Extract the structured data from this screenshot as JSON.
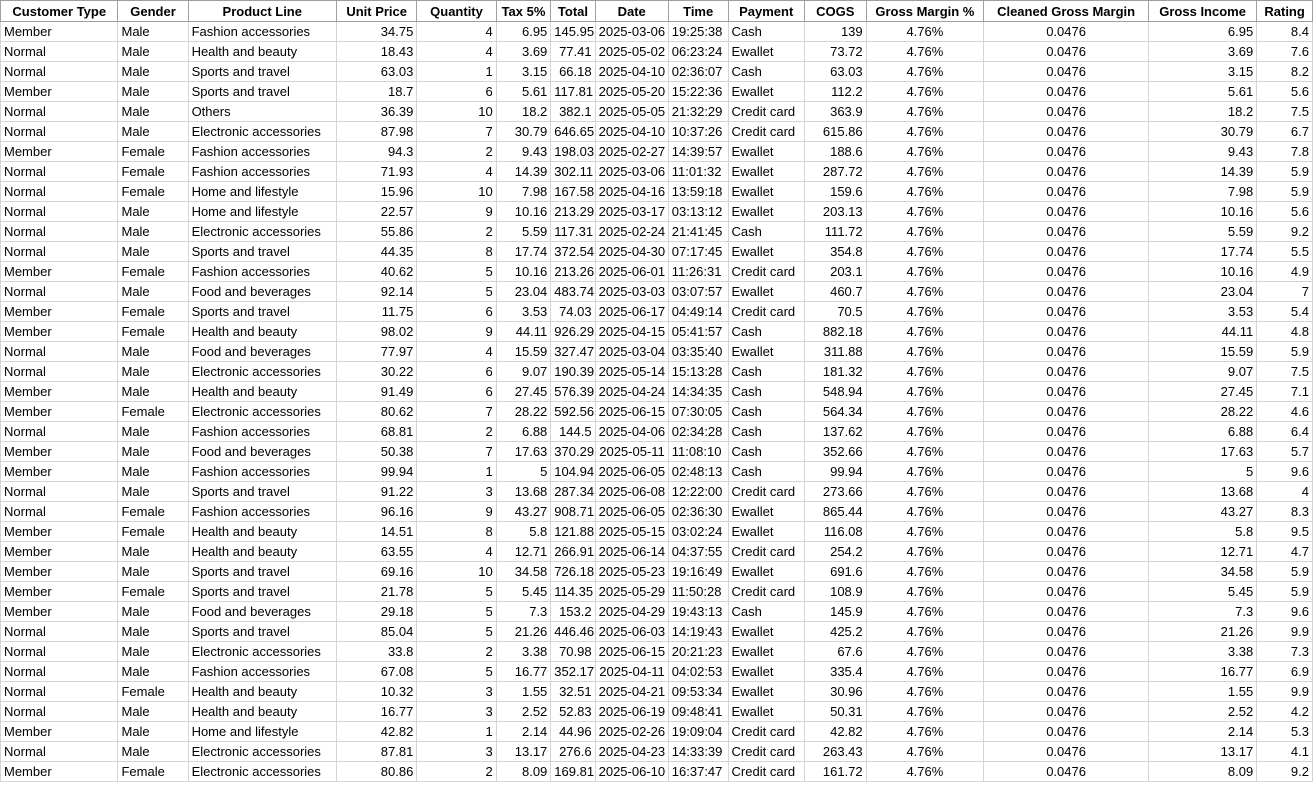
{
  "columns": [
    "Customer Type",
    "Gender",
    "Product Line",
    "Unit Price",
    "Quantity",
    "Tax 5%",
    "Total",
    "Date",
    "Time",
    "Payment",
    "COGS",
    "Gross Margin %",
    "Cleaned Gross Margin",
    "Gross Income",
    "Rating"
  ],
  "rows": [
    [
      "Member",
      "Male",
      "Fashion accessories",
      "34.75",
      "4",
      "6.95",
      "145.95",
      "2025-03-06",
      "19:25:38",
      "Cash",
      "139",
      "4.76%",
      "0.0476",
      "6.95",
      "8.4"
    ],
    [
      "Normal",
      "Male",
      "Health and beauty",
      "18.43",
      "4",
      "3.69",
      "77.41",
      "2025-05-02",
      "06:23:24",
      "Ewallet",
      "73.72",
      "4.76%",
      "0.0476",
      "3.69",
      "7.6"
    ],
    [
      "Normal",
      "Male",
      "Sports and travel",
      "63.03",
      "1",
      "3.15",
      "66.18",
      "2025-04-10",
      "02:36:07",
      "Cash",
      "63.03",
      "4.76%",
      "0.0476",
      "3.15",
      "8.2"
    ],
    [
      "Member",
      "Male",
      "Sports and travel",
      "18.7",
      "6",
      "5.61",
      "117.81",
      "2025-05-20",
      "15:22:36",
      "Ewallet",
      "112.2",
      "4.76%",
      "0.0476",
      "5.61",
      "5.6"
    ],
    [
      "Normal",
      "Male",
      "Others",
      "36.39",
      "10",
      "18.2",
      "382.1",
      "2025-05-05",
      "21:32:29",
      "Credit card",
      "363.9",
      "4.76%",
      "0.0476",
      "18.2",
      "7.5"
    ],
    [
      "Normal",
      "Male",
      "Electronic accessories",
      "87.98",
      "7",
      "30.79",
      "646.65",
      "2025-04-10",
      "10:37:26",
      "Credit card",
      "615.86",
      "4.76%",
      "0.0476",
      "30.79",
      "6.7"
    ],
    [
      "Member",
      "Female",
      "Fashion accessories",
      "94.3",
      "2",
      "9.43",
      "198.03",
      "2025-02-27",
      "14:39:57",
      "Ewallet",
      "188.6",
      "4.76%",
      "0.0476",
      "9.43",
      "7.8"
    ],
    [
      "Normal",
      "Female",
      "Fashion accessories",
      "71.93",
      "4",
      "14.39",
      "302.11",
      "2025-03-06",
      "11:01:32",
      "Ewallet",
      "287.72",
      "4.76%",
      "0.0476",
      "14.39",
      "5.9"
    ],
    [
      "Normal",
      "Female",
      "Home and lifestyle",
      "15.96",
      "10",
      "7.98",
      "167.58",
      "2025-04-16",
      "13:59:18",
      "Ewallet",
      "159.6",
      "4.76%",
      "0.0476",
      "7.98",
      "5.9"
    ],
    [
      "Normal",
      "Male",
      "Home and lifestyle",
      "22.57",
      "9",
      "10.16",
      "213.29",
      "2025-03-17",
      "03:13:12",
      "Ewallet",
      "203.13",
      "4.76%",
      "0.0476",
      "10.16",
      "5.6"
    ],
    [
      "Normal",
      "Male",
      "Electronic accessories",
      "55.86",
      "2",
      "5.59",
      "117.31",
      "2025-02-24",
      "21:41:45",
      "Cash",
      "111.72",
      "4.76%",
      "0.0476",
      "5.59",
      "9.2"
    ],
    [
      "Normal",
      "Male",
      "Sports and travel",
      "44.35",
      "8",
      "17.74",
      "372.54",
      "2025-04-30",
      "07:17:45",
      "Ewallet",
      "354.8",
      "4.76%",
      "0.0476",
      "17.74",
      "5.5"
    ],
    [
      "Member",
      "Female",
      "Fashion accessories",
      "40.62",
      "5",
      "10.16",
      "213.26",
      "2025-06-01",
      "11:26:31",
      "Credit card",
      "203.1",
      "4.76%",
      "0.0476",
      "10.16",
      "4.9"
    ],
    [
      "Normal",
      "Male",
      "Food and beverages",
      "92.14",
      "5",
      "23.04",
      "483.74",
      "2025-03-03",
      "03:07:57",
      "Ewallet",
      "460.7",
      "4.76%",
      "0.0476",
      "23.04",
      "7"
    ],
    [
      "Member",
      "Female",
      "Sports and travel",
      "11.75",
      "6",
      "3.53",
      "74.03",
      "2025-06-17",
      "04:49:14",
      "Credit card",
      "70.5",
      "4.76%",
      "0.0476",
      "3.53",
      "5.4"
    ],
    [
      "Member",
      "Female",
      "Health and beauty",
      "98.02",
      "9",
      "44.11",
      "926.29",
      "2025-04-15",
      "05:41:57",
      "Cash",
      "882.18",
      "4.76%",
      "0.0476",
      "44.11",
      "4.8"
    ],
    [
      "Normal",
      "Male",
      "Food and beverages",
      "77.97",
      "4",
      "15.59",
      "327.47",
      "2025-03-04",
      "03:35:40",
      "Ewallet",
      "311.88",
      "4.76%",
      "0.0476",
      "15.59",
      "5.9"
    ],
    [
      "Normal",
      "Male",
      "Electronic accessories",
      "30.22",
      "6",
      "9.07",
      "190.39",
      "2025-05-14",
      "15:13:28",
      "Cash",
      "181.32",
      "4.76%",
      "0.0476",
      "9.07",
      "7.5"
    ],
    [
      "Member",
      "Male",
      "Health and beauty",
      "91.49",
      "6",
      "27.45",
      "576.39",
      "2025-04-24",
      "14:34:35",
      "Cash",
      "548.94",
      "4.76%",
      "0.0476",
      "27.45",
      "7.1"
    ],
    [
      "Member",
      "Female",
      "Electronic accessories",
      "80.62",
      "7",
      "28.22",
      "592.56",
      "2025-06-15",
      "07:30:05",
      "Cash",
      "564.34",
      "4.76%",
      "0.0476",
      "28.22",
      "4.6"
    ],
    [
      "Normal",
      "Male",
      "Fashion accessories",
      "68.81",
      "2",
      "6.88",
      "144.5",
      "2025-04-06",
      "02:34:28",
      "Cash",
      "137.62",
      "4.76%",
      "0.0476",
      "6.88",
      "6.4"
    ],
    [
      "Member",
      "Male",
      "Food and beverages",
      "50.38",
      "7",
      "17.63",
      "370.29",
      "2025-05-11",
      "11:08:10",
      "Cash",
      "352.66",
      "4.76%",
      "0.0476",
      "17.63",
      "5.7"
    ],
    [
      "Member",
      "Male",
      "Fashion accessories",
      "99.94",
      "1",
      "5",
      "104.94",
      "2025-06-05",
      "02:48:13",
      "Cash",
      "99.94",
      "4.76%",
      "0.0476",
      "5",
      "9.6"
    ],
    [
      "Normal",
      "Male",
      "Sports and travel",
      "91.22",
      "3",
      "13.68",
      "287.34",
      "2025-06-08",
      "12:22:00",
      "Credit card",
      "273.66",
      "4.76%",
      "0.0476",
      "13.68",
      "4"
    ],
    [
      "Normal",
      "Female",
      "Fashion accessories",
      "96.16",
      "9",
      "43.27",
      "908.71",
      "2025-06-05",
      "02:36:30",
      "Ewallet",
      "865.44",
      "4.76%",
      "0.0476",
      "43.27",
      "8.3"
    ],
    [
      "Member",
      "Female",
      "Health and beauty",
      "14.51",
      "8",
      "5.8",
      "121.88",
      "2025-05-15",
      "03:02:24",
      "Ewallet",
      "116.08",
      "4.76%",
      "0.0476",
      "5.8",
      "9.5"
    ],
    [
      "Member",
      "Male",
      "Health and beauty",
      "63.55",
      "4",
      "12.71",
      "266.91",
      "2025-06-14",
      "04:37:55",
      "Credit card",
      "254.2",
      "4.76%",
      "0.0476",
      "12.71",
      "4.7"
    ],
    [
      "Member",
      "Male",
      "Sports and travel",
      "69.16",
      "10",
      "34.58",
      "726.18",
      "2025-05-23",
      "19:16:49",
      "Ewallet",
      "691.6",
      "4.76%",
      "0.0476",
      "34.58",
      "5.9"
    ],
    [
      "Member",
      "Female",
      "Sports and travel",
      "21.78",
      "5",
      "5.45",
      "114.35",
      "2025-05-29",
      "11:50:28",
      "Credit card",
      "108.9",
      "4.76%",
      "0.0476",
      "5.45",
      "5.9"
    ],
    [
      "Member",
      "Male",
      "Food and beverages",
      "29.18",
      "5",
      "7.3",
      "153.2",
      "2025-04-29",
      "19:43:13",
      "Cash",
      "145.9",
      "4.76%",
      "0.0476",
      "7.3",
      "9.6"
    ],
    [
      "Normal",
      "Male",
      "Sports and travel",
      "85.04",
      "5",
      "21.26",
      "446.46",
      "2025-06-03",
      "14:19:43",
      "Ewallet",
      "425.2",
      "4.76%",
      "0.0476",
      "21.26",
      "9.9"
    ],
    [
      "Normal",
      "Male",
      "Electronic accessories",
      "33.8",
      "2",
      "3.38",
      "70.98",
      "2025-06-15",
      "20:21:23",
      "Ewallet",
      "67.6",
      "4.76%",
      "0.0476",
      "3.38",
      "7.3"
    ],
    [
      "Normal",
      "Male",
      "Fashion accessories",
      "67.08",
      "5",
      "16.77",
      "352.17",
      "2025-04-11",
      "04:02:53",
      "Ewallet",
      "335.4",
      "4.76%",
      "0.0476",
      "16.77",
      "6.9"
    ],
    [
      "Normal",
      "Female",
      "Health and beauty",
      "10.32",
      "3",
      "1.55",
      "32.51",
      "2025-04-21",
      "09:53:34",
      "Ewallet",
      "30.96",
      "4.76%",
      "0.0476",
      "1.55",
      "9.9"
    ],
    [
      "Normal",
      "Male",
      "Health and beauty",
      "16.77",
      "3",
      "2.52",
      "52.83",
      "2025-06-19",
      "09:48:41",
      "Ewallet",
      "50.31",
      "4.76%",
      "0.0476",
      "2.52",
      "4.2"
    ],
    [
      "Member",
      "Male",
      "Home and lifestyle",
      "42.82",
      "1",
      "2.14",
      "44.96",
      "2025-02-26",
      "19:09:04",
      "Credit card",
      "42.82",
      "4.76%",
      "0.0476",
      "2.14",
      "5.3"
    ],
    [
      "Normal",
      "Male",
      "Electronic accessories",
      "87.81",
      "3",
      "13.17",
      "276.6",
      "2025-04-23",
      "14:33:39",
      "Credit card",
      "263.43",
      "4.76%",
      "0.0476",
      "13.17",
      "4.1"
    ],
    [
      "Member",
      "Female",
      "Electronic accessories",
      "80.86",
      "2",
      "8.09",
      "169.81",
      "2025-06-10",
      "16:37:47",
      "Credit card",
      "161.72",
      "4.76%",
      "0.0476",
      "8.09",
      "9.2"
    ]
  ]
}
